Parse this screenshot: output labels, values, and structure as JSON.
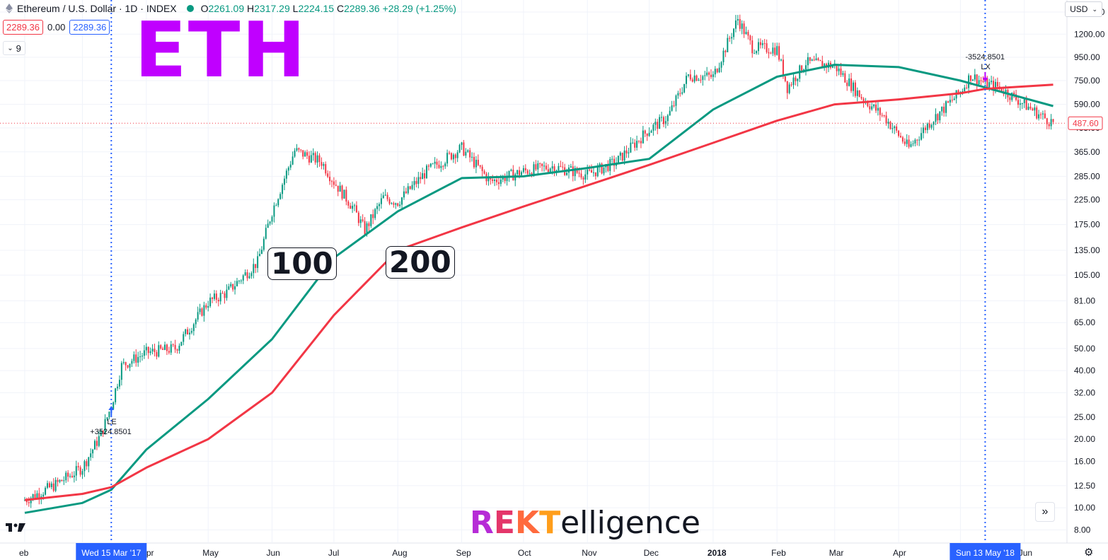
{
  "header": {
    "title": "Ethereum / U.S. Dollar · 1D · INDEX",
    "open_label": "O",
    "open": "2261.09",
    "high_label": "H",
    "high": "2317.29",
    "low_label": "L",
    "low": "2224.15",
    "close_label": "C",
    "close": "2289.36",
    "change": "+28.29 (+1.25%)"
  },
  "quote": {
    "bid": "2289.36",
    "spread": "0.00",
    "ask": "2289.36"
  },
  "indicator_count": "9",
  "currency": "USD",
  "overlay": {
    "symbol_text": "ETH",
    "ma_fast_label": "100",
    "ma_slow_label": "200"
  },
  "brand": {
    "part1": "R",
    "part2": "E",
    "part3": "K",
    "part4": "T",
    "rest": "elligence"
  },
  "colors": {
    "up": "#089981",
    "down": "#f23645",
    "ma100": "#089981",
    "ma200": "#f23645",
    "signal_buy": "#2962ff",
    "signal_sell": "#c000ff",
    "eth_text": "#c000ff"
  },
  "chart_data": {
    "type": "line",
    "title": "",
    "xlabel": "",
    "ylabel": "",
    "y_scale": "log",
    "ylim": [
      7,
      1600
    ],
    "x_ticks": [
      "eb",
      "Mar",
      "Apr",
      "May",
      "Jun",
      "Jul",
      "Aug",
      "Sep",
      "Oct",
      "Nov",
      "Dec",
      "2018",
      "Feb",
      "Mar",
      "Apr",
      "May",
      "Jun"
    ],
    "y_ticks": [
      8.0,
      10.0,
      12.5,
      16.0,
      20.0,
      25.0,
      32.0,
      40.0,
      50.0,
      65.0,
      81.0,
      105.0,
      135.0,
      175.0,
      225.0,
      285.0,
      365.0,
      465.0,
      590.0,
      750.0,
      950.0,
      1200.0,
      1500.0
    ],
    "y_tick_labels": [
      "8.00",
      "10.00",
      "12.50",
      "16.00",
      "20.00",
      "25.00",
      "32.00",
      "40.00",
      "50.00",
      "65.00",
      "81.00",
      "105.00",
      "135.00",
      "175.00",
      "225.00",
      "285.00",
      "365.00",
      "465.00",
      "590.00",
      "750.00",
      "950.00",
      "1200.00",
      "1500.00"
    ],
    "last_price_label": "487.60",
    "cursor_labels": {
      "entry_date": "Wed 15 Mar '17",
      "exit_date": "Sun 13 May '18"
    },
    "signals": [
      {
        "label": "LE",
        "value_text": "+3524.8501",
        "date": "2017-03-15",
        "price": 28
      },
      {
        "label": "LX",
        "value_text": "-3524.8501",
        "date": "2018-05-13",
        "price": 740
      }
    ],
    "series": [
      {
        "name": "Price",
        "color": "#089981",
        "x": [
          "2017-02-01",
          "2017-02-15",
          "2017-03-01",
          "2017-03-10",
          "2017-03-15",
          "2017-03-20",
          "2017-04-01",
          "2017-04-15",
          "2017-05-01",
          "2017-05-10",
          "2017-05-25",
          "2017-06-01",
          "2017-06-12",
          "2017-06-25",
          "2017-07-01",
          "2017-07-10",
          "2017-07-16",
          "2017-07-25",
          "2017-08-01",
          "2017-08-15",
          "2017-09-01",
          "2017-09-15",
          "2017-10-01",
          "2017-10-15",
          "2017-11-01",
          "2017-11-15",
          "2017-11-30",
          "2017-12-10",
          "2017-12-20",
          "2018-01-01",
          "2018-01-13",
          "2018-01-20",
          "2018-02-01",
          "2018-02-06",
          "2018-02-15",
          "2018-03-01",
          "2018-03-15",
          "2018-03-25",
          "2018-04-06",
          "2018-04-15",
          "2018-05-01",
          "2018-05-06",
          "2018-05-13",
          "2018-05-20",
          "2018-06-01",
          "2018-06-10",
          "2018-06-15"
        ],
        "values": [
          10.8,
          12.5,
          15,
          21,
          28,
          42,
          48,
          50,
          80,
          88,
          120,
          200,
          370,
          330,
          270,
          210,
          165,
          230,
          220,
          300,
          380,
          270,
          300,
          315,
          290,
          330,
          450,
          520,
          790,
          780,
          1400,
          1050,
          1030,
          700,
          900,
          870,
          620,
          520,
          380,
          480,
          670,
          790,
          730,
          700,
          590,
          520,
          490
        ]
      },
      {
        "name": "100",
        "color": "#089981",
        "x": [
          "2017-02-01",
          "2017-03-01",
          "2017-03-15",
          "2017-04-01",
          "2017-05-01",
          "2017-06-01",
          "2017-07-01",
          "2017-08-01",
          "2017-09-01",
          "2017-10-01",
          "2017-11-01",
          "2017-12-01",
          "2018-01-01",
          "2018-02-01",
          "2018-03-01",
          "2018-04-01",
          "2018-05-01",
          "2018-05-13",
          "2018-06-15"
        ],
        "values": [
          9.5,
          10.5,
          12,
          18,
          30,
          55,
          125,
          200,
          280,
          285,
          310,
          340,
          560,
          780,
          880,
          860,
          750,
          700,
          580
        ]
      },
      {
        "name": "200",
        "color": "#f23645",
        "x": [
          "2017-02-01",
          "2017-03-01",
          "2017-03-15",
          "2017-04-01",
          "2017-05-01",
          "2017-06-01",
          "2017-07-01",
          "2017-08-01",
          "2017-09-01",
          "2017-10-01",
          "2017-11-01",
          "2017-12-01",
          "2018-01-01",
          "2018-02-01",
          "2018-03-01",
          "2018-04-01",
          "2018-05-01",
          "2018-05-13",
          "2018-06-15"
        ],
        "values": [
          10.8,
          11.5,
          12.3,
          15,
          20,
          32,
          70,
          135,
          170,
          210,
          260,
          320,
          400,
          500,
          590,
          620,
          660,
          690,
          720
        ]
      }
    ]
  }
}
